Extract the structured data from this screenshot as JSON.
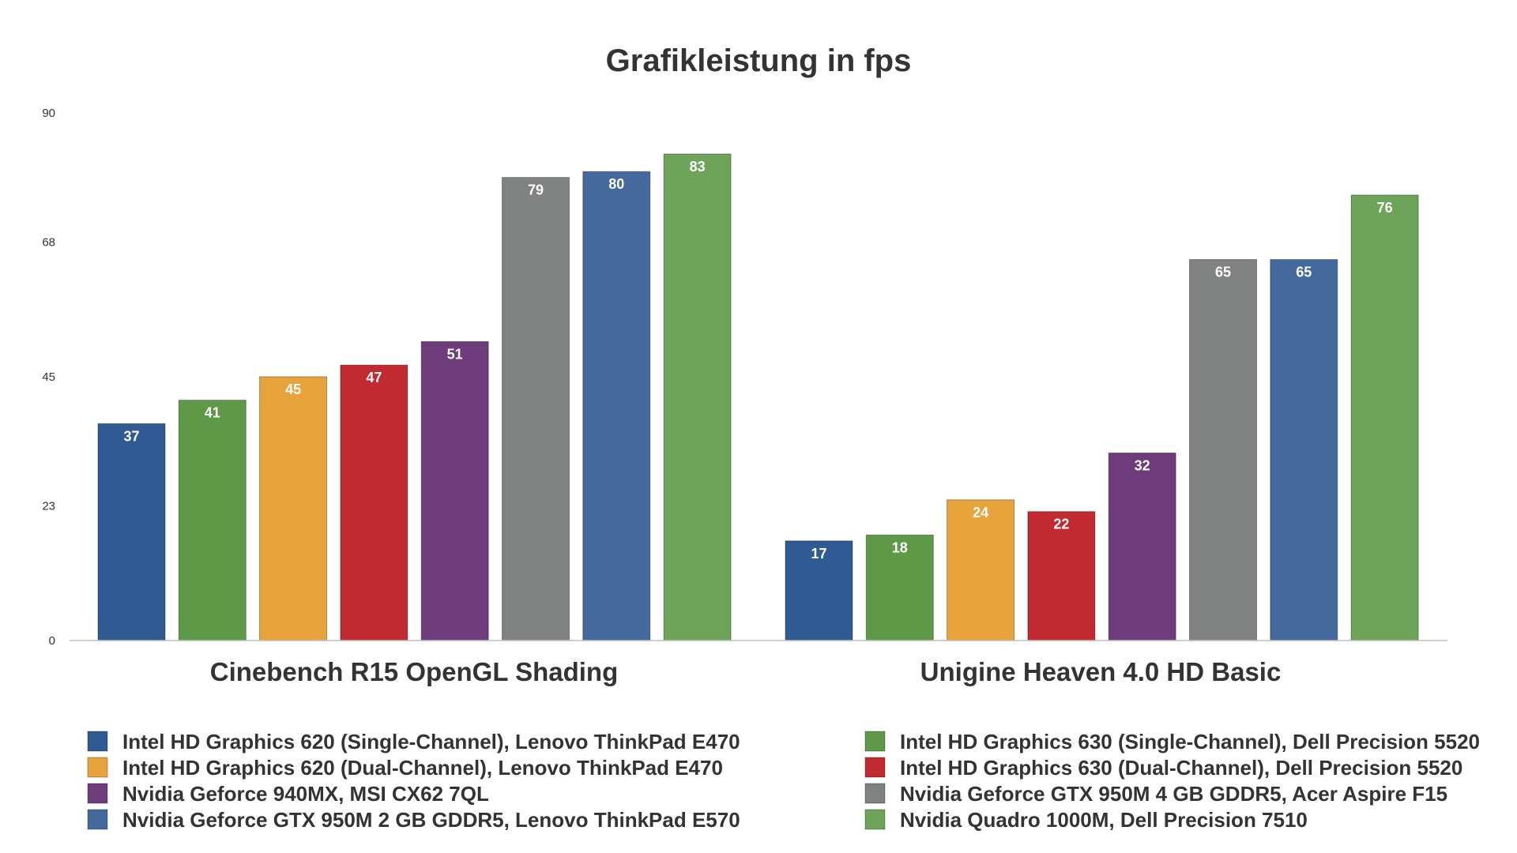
{
  "chart_data": {
    "type": "bar",
    "title": "Grafikleistung in fps",
    "xlabel": "",
    "ylabel": "",
    "ylim": [
      0,
      90
    ],
    "yticks": [
      0,
      23,
      45,
      68,
      90
    ],
    "grid": false,
    "legend_position": "bottom",
    "categories": [
      "Cinebench R15 OpenGL Shading",
      "Unigine Heaven 4.0 HD Basic"
    ],
    "series": [
      {
        "name": "Intel HD Graphics 620 (Single-Channel), Lenovo ThinkPad E470",
        "color": "#2f5a93",
        "values": [
          37,
          17
        ]
      },
      {
        "name": "Intel HD Graphics 630 (Single-Channel), Dell Precision 5520",
        "color": "#5e9948",
        "values": [
          41,
          18
        ]
      },
      {
        "name": "Intel HD Graphics 620 (Dual-Channel), Lenovo ThinkPad E470",
        "color": "#e8a33c",
        "values": [
          45,
          24
        ]
      },
      {
        "name": "Intel HD Graphics 630 (Dual-Channel), Dell Precision 5520",
        "color": "#c12a30",
        "values": [
          47,
          22
        ]
      },
      {
        "name": "Nvidia Geforce 940MX, MSI CX62 7QL",
        "color": "#6e3b7b",
        "values": [
          51,
          32
        ]
      },
      {
        "name": "Nvidia Geforce GTX 950M 4 GB GDDR5, Acer Aspire F15",
        "color": "#7f8280",
        "values": [
          79,
          65
        ]
      },
      {
        "name": "Nvidia Geforce GTX 950M 2 GB GDDR5, Lenovo ThinkPad E570",
        "color": "#44699d",
        "values": [
          80,
          65
        ]
      },
      {
        "name": "Nvidia Quadro 1000M, Dell Precision 7510",
        "color": "#6da45a",
        "values": [
          83,
          76
        ]
      }
    ]
  }
}
